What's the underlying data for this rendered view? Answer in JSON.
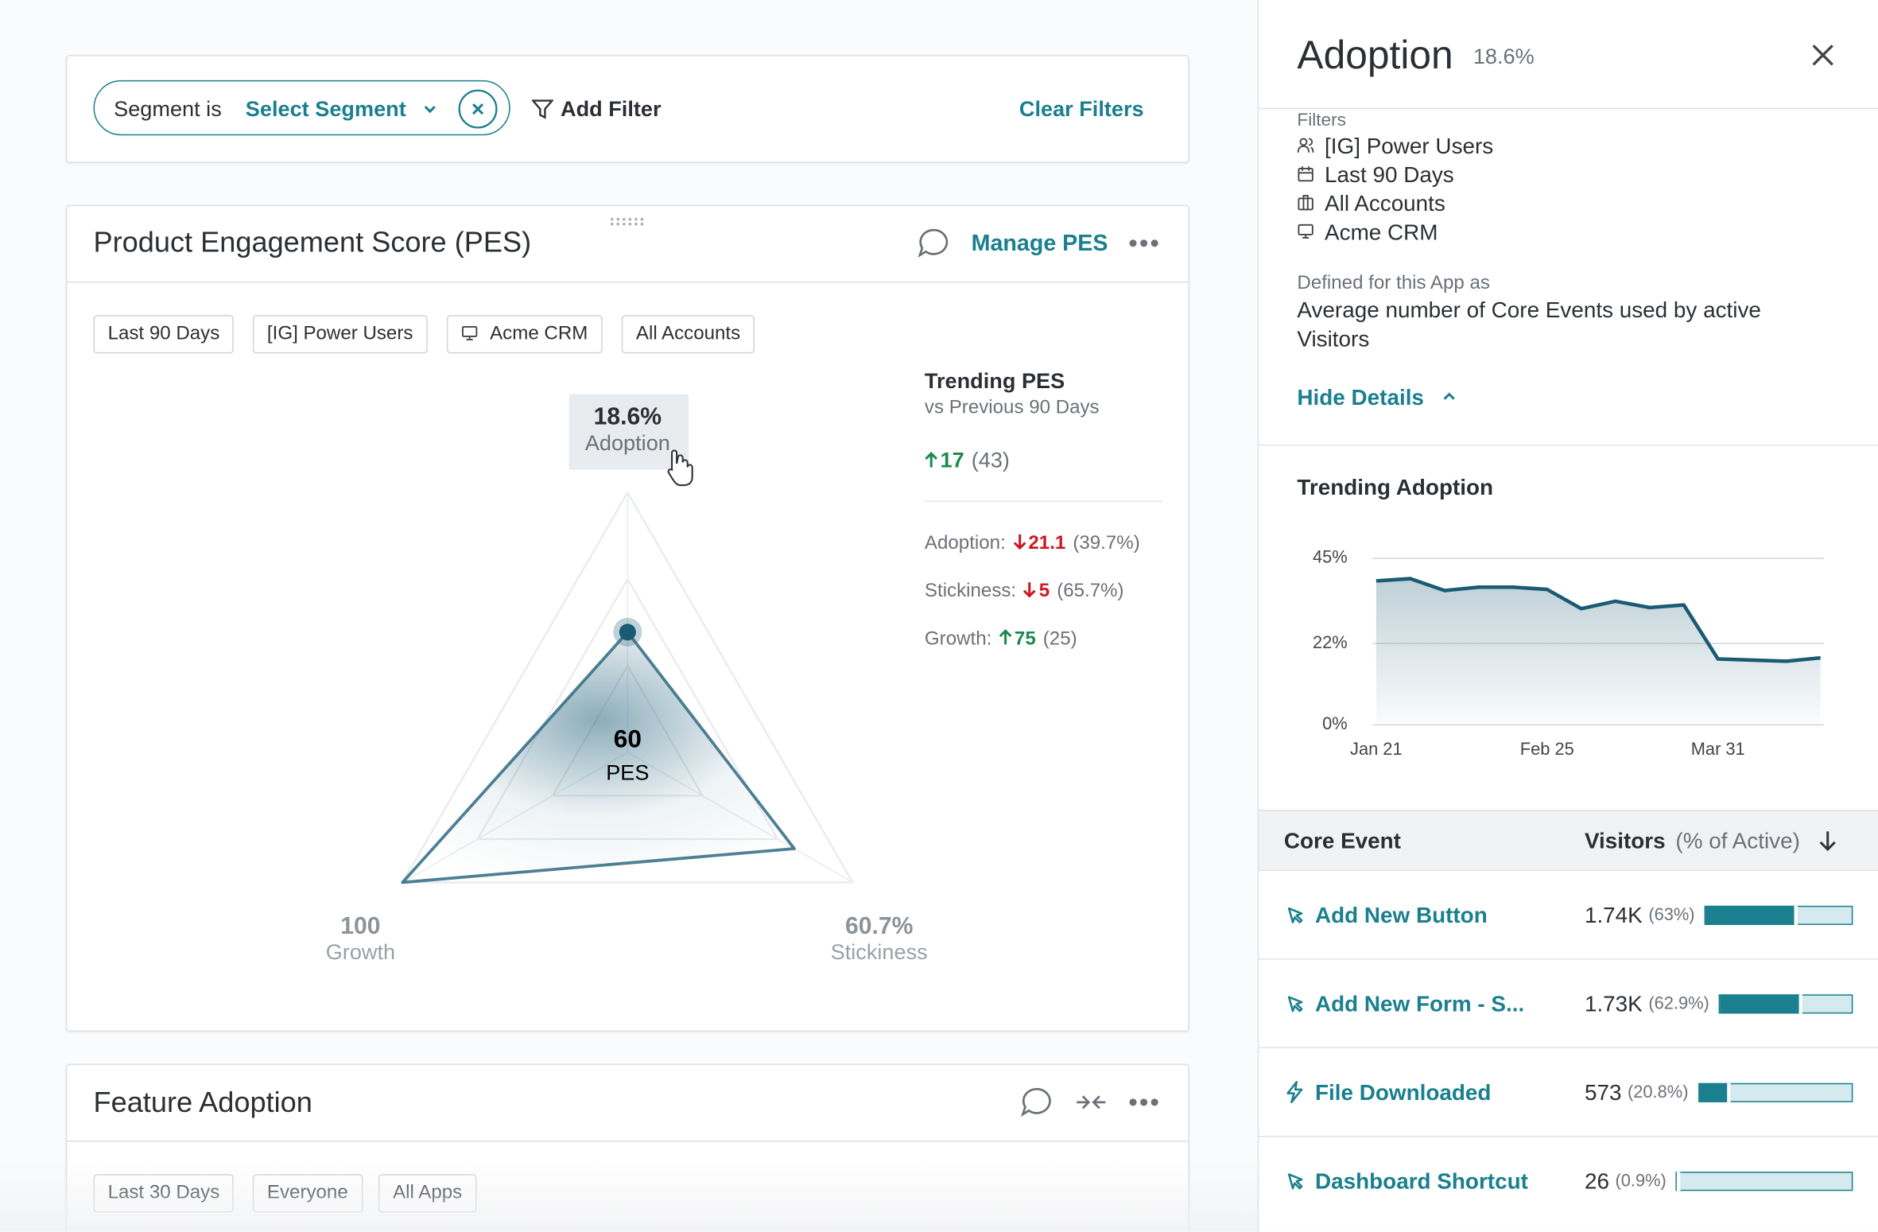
{
  "filter_bar": {
    "segment_label": "Segment is",
    "segment_value": "Select Segment",
    "add_filter": "Add Filter",
    "clear_filters": "Clear Filters"
  },
  "pes_card": {
    "title": "Product Engagement Score (PES)",
    "manage": "Manage PES",
    "chips": [
      "Last 90 Days",
      "[IG] Power Users",
      "Acme CRM",
      "All Accounts"
    ],
    "radar": {
      "type": "radar",
      "categories": [
        "Adoption",
        "Stickiness",
        "Growth"
      ],
      "values": [
        18.6,
        60.7,
        100
      ],
      "value_labels": [
        "18.6%",
        "60.7%",
        "100"
      ],
      "center_value": "60",
      "center_label": "PES",
      "color": "#2e6a82"
    },
    "trending": {
      "title": "Trending PES",
      "subtitle": "vs Previous 90 Days",
      "change": "17",
      "direction": "up",
      "previous": "(43)",
      "metrics": [
        {
          "name": "Adoption:",
          "change": "21.1",
          "direction": "down",
          "previous": "(39.7%)"
        },
        {
          "name": "Stickiness:",
          "change": "5",
          "direction": "down",
          "previous": "(65.7%)"
        },
        {
          "name": "Growth:",
          "change": "75",
          "direction": "up",
          "previous": "(25)"
        }
      ]
    }
  },
  "feature_card": {
    "title": "Feature Adoption",
    "chips": [
      "Last 30 Days",
      "Everyone",
      "All Apps"
    ]
  },
  "panel": {
    "title": "Adoption",
    "value": "18.6%",
    "filters_label": "Filters",
    "filters": [
      {
        "icon": "user",
        "text": "[IG] Power Users"
      },
      {
        "icon": "calendar",
        "text": "Last 90 Days"
      },
      {
        "icon": "building",
        "text": "All Accounts"
      },
      {
        "icon": "monitor",
        "text": "Acme CRM"
      }
    ],
    "defined_label": "Defined for this App as",
    "definition": "Average number of Core Events used by active Visitors",
    "hide_details": "Hide Details",
    "chart_data": {
      "type": "line",
      "title": "Trending Adoption",
      "categories": [
        "Jan 21",
        null,
        null,
        null,
        null,
        "Feb 25",
        null,
        null,
        null,
        null,
        "Mar 31",
        null,
        null,
        null
      ],
      "series": [
        {
          "name": "Adoption",
          "color": "#1a5a73",
          "values": [
            38.9,
            39.5,
            36.3,
            37.2,
            37.2,
            36.6,
            31.4,
            33.4,
            31.7,
            32.4,
            17.8,
            17.5,
            17.2,
            18.1
          ]
        }
      ],
      "ylim": [
        0,
        45
      ],
      "yticks": [
        {
          "value": 0,
          "label": "0%"
        },
        {
          "value": 22,
          "label": "22%"
        },
        {
          "value": 45,
          "label": "45%"
        }
      ],
      "grid": true
    },
    "table": {
      "event_header": "Core Event",
      "visitors_header": "Visitors",
      "visitors_subheader": "(% of Active)",
      "rows": [
        {
          "icon": "click",
          "event": "Add New Button",
          "visitors": "1.74K",
          "pct": 63,
          "pct_label": "(63%)"
        },
        {
          "icon": "click",
          "event": "Add New Form - S...",
          "visitors": "1.73K",
          "pct": 62.9,
          "pct_label": "(62.9%)"
        },
        {
          "icon": "bolt",
          "event": "File Downloaded",
          "visitors": "573",
          "pct": 20.8,
          "pct_label": "(20.8%)"
        },
        {
          "icon": "click",
          "event": "Dashboard Shortcut",
          "visitors": "26",
          "pct": 0.9,
          "pct_label": "(0.9%)"
        }
      ]
    }
  }
}
